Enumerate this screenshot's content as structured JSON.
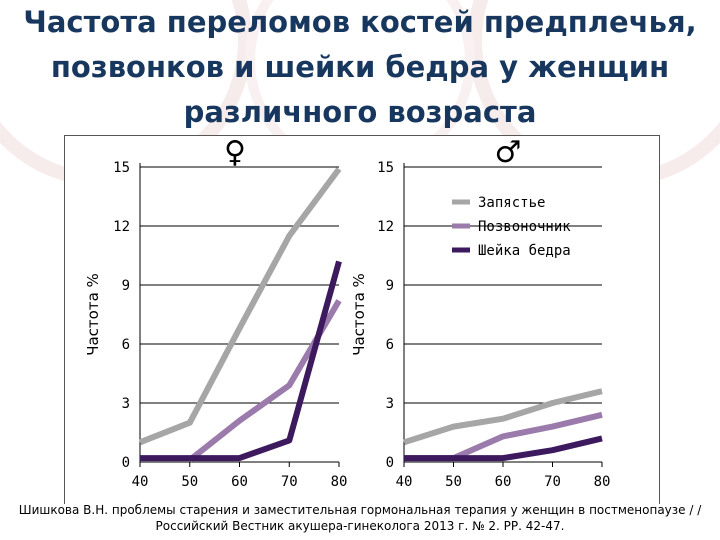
{
  "title_lines": [
    "Частота переломов костей предплечья,",
    "позвонков и шейки бедра у женщин",
    "различного возраста"
  ],
  "citation_lines": [
    "Шишкова В.Н. проблемы старения и заместительная гормональная терапия у женщин в постменопаузе / /",
    "Российский Вестник акушера-гинеколога 2013 г. № 2. РР. 42-47."
  ],
  "colors": {
    "title": "#17375e",
    "wrist": "#a6a6a6",
    "spine": "#9a7bab",
    "hip": "#3d1a5e"
  },
  "chart_data": [
    {
      "type": "line",
      "panel_symbol": "♀",
      "ylabel": "Частота %",
      "x": [
        40,
        50,
        60,
        70,
        80
      ],
      "xlim": [
        40,
        80
      ],
      "ylim": [
        0,
        15
      ],
      "yticks": [
        0,
        3,
        6,
        9,
        12,
        15
      ],
      "grid": true,
      "legend": "none",
      "series": [
        {
          "key": "wrist",
          "x": [
            40,
            50,
            60,
            70,
            80
          ],
          "values": [
            1.0,
            2.0,
            6.8,
            11.5,
            14.9
          ]
        },
        {
          "key": "spine",
          "x": [
            50,
            60,
            70,
            80
          ],
          "values": [
            0.1,
            2.1,
            3.9,
            8.2
          ]
        },
        {
          "key": "hip",
          "x": [
            40,
            50,
            60,
            70,
            80
          ],
          "values": [
            0.2,
            0.2,
            0.2,
            1.1,
            10.2
          ]
        }
      ]
    },
    {
      "type": "line",
      "panel_symbol": "♂",
      "ylabel": "Частота %",
      "x": [
        40,
        50,
        60,
        70,
        80
      ],
      "xlim": [
        40,
        80
      ],
      "ylim": [
        0,
        15
      ],
      "yticks": [
        0,
        3,
        6,
        9,
        12,
        15
      ],
      "grid": true,
      "legend": "top-right",
      "series": [
        {
          "key": "wrist",
          "name": "Запястье",
          "x": [
            40,
            50,
            60,
            70,
            80
          ],
          "values": [
            1.0,
            1.8,
            2.2,
            3.0,
            3.6
          ]
        },
        {
          "key": "spine",
          "name": "Позвоночник",
          "x": [
            40,
            50,
            60,
            70,
            80
          ],
          "values": [
            0.2,
            0.2,
            1.3,
            1.8,
            2.4
          ]
        },
        {
          "key": "hip",
          "name": "Шейка бедра",
          "x": [
            40,
            50,
            60,
            70,
            80
          ],
          "values": [
            0.2,
            0.2,
            0.2,
            0.6,
            1.2
          ]
        }
      ]
    }
  ]
}
